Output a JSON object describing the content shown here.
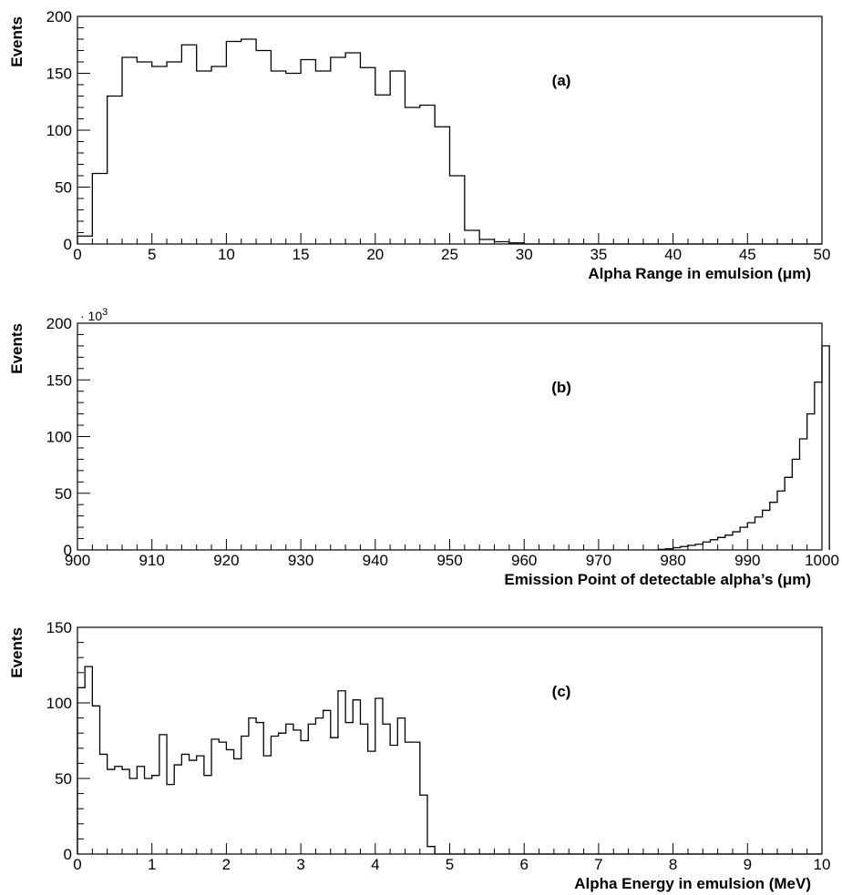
{
  "chart_data": [
    {
      "type": "bar",
      "panel_label": "(a)",
      "xlabel": "Alpha Range in emulsion (μm)",
      "ylabel": "Events",
      "multiplier": "",
      "xlim": [
        0,
        50
      ],
      "ylim": [
        0,
        200
      ],
      "xticks": [
        0,
        5,
        10,
        15,
        20,
        25,
        30,
        35,
        40,
        45,
        50
      ],
      "yticks": [
        0,
        50,
        100,
        150,
        200
      ],
      "grid": false,
      "bin_width": 1,
      "x_start": 0,
      "values": [
        7,
        62,
        130,
        164,
        160,
        156,
        160,
        175,
        152,
        156,
        178,
        180,
        170,
        152,
        150,
        162,
        152,
        164,
        168,
        155,
        131,
        152,
        120,
        122,
        103,
        60,
        12,
        4,
        2,
        1,
        0,
        0,
        0,
        0,
        0,
        0,
        0,
        0,
        0,
        0,
        0,
        0,
        0,
        0,
        0,
        0,
        0,
        0,
        0,
        0
      ]
    },
    {
      "type": "bar",
      "panel_label": "(b)",
      "xlabel": "Emission Point of detectable alpha’s (μm)",
      "ylabel": "Events",
      "multiplier": "· 10",
      "multiplier_exp": "3",
      "xlim": [
        900,
        1000
      ],
      "ylim": [
        0,
        200
      ],
      "xticks": [
        900,
        910,
        920,
        930,
        940,
        950,
        960,
        970,
        980,
        990,
        1000
      ],
      "yticks": [
        0,
        50,
        100,
        150,
        200
      ],
      "grid": false,
      "bin_width": 1,
      "x_start": 978,
      "values": [
        0.5,
        1,
        2,
        3,
        4,
        5,
        7,
        9,
        11,
        13,
        16,
        20,
        24,
        29,
        35,
        42,
        52,
        64,
        80,
        98,
        120,
        148,
        180
      ]
    },
    {
      "type": "bar",
      "panel_label": "(c)",
      "xlabel": "Alpha Energy in emulsion (MeV)",
      "ylabel": "Events",
      "multiplier": "",
      "xlim": [
        0,
        10
      ],
      "ylim": [
        0,
        150
      ],
      "xticks": [
        0,
        1,
        2,
        3,
        4,
        5,
        6,
        7,
        8,
        9,
        10
      ],
      "yticks": [
        0,
        50,
        100,
        150
      ],
      "grid": false,
      "bin_width": 0.1,
      "x_start": 0,
      "values": [
        110,
        124,
        98,
        66,
        56,
        58,
        56,
        50,
        58,
        50,
        52,
        79,
        46,
        59,
        66,
        62,
        65,
        52,
        76,
        74,
        69,
        63,
        78,
        90,
        87,
        65,
        78,
        80,
        86,
        82,
        75,
        86,
        90,
        95,
        77,
        108,
        87,
        102,
        86,
        68,
        103,
        86,
        72,
        90,
        74,
        74,
        39,
        5,
        0,
        0,
        0,
        0,
        0,
        0,
        0,
        0,
        0,
        0,
        0,
        0,
        0,
        0,
        0,
        0,
        0,
        0,
        0,
        0,
        0,
        0,
        0,
        0,
        0,
        0,
        0,
        0,
        0,
        0,
        0,
        0,
        0,
        0,
        0,
        0,
        0,
        0,
        0,
        0,
        0,
        0,
        0,
        0,
        0,
        0,
        0,
        0,
        0,
        0,
        0,
        0
      ]
    }
  ]
}
